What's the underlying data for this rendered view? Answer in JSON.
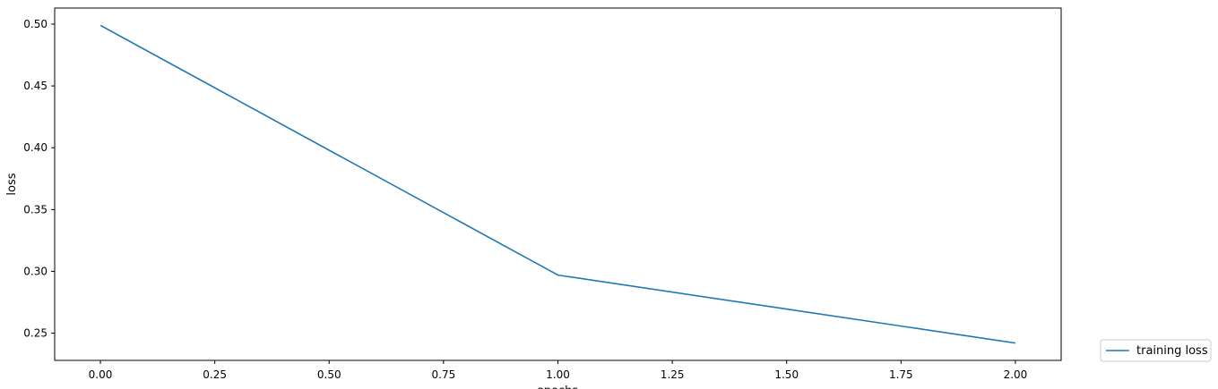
{
  "chart_data": {
    "type": "line",
    "title": "",
    "xlabel": "epochs",
    "ylabel": "loss",
    "xlim": [
      -0.1,
      2.1
    ],
    "ylim": [
      0.228,
      0.513
    ],
    "xticks": [
      0.0,
      0.25,
      0.5,
      0.75,
      1.0,
      1.25,
      1.5,
      1.75,
      2.0
    ],
    "xtick_labels": [
      "0.00",
      "0.25",
      "0.50",
      "0.75",
      "1.00",
      "1.25",
      "1.50",
      "1.75",
      "2.00"
    ],
    "yticks": [
      0.25,
      0.3,
      0.35,
      0.4,
      0.45,
      0.5
    ],
    "ytick_labels": [
      "0.25",
      "0.30",
      "0.35",
      "0.40",
      "0.45",
      "0.50"
    ],
    "grid": false,
    "legend_position": "outside-bottom-right",
    "series": [
      {
        "name": "training loss",
        "color": "#1f77b4",
        "x": [
          0,
          1,
          2
        ],
        "y": [
          0.499,
          0.297,
          0.242
        ]
      }
    ]
  }
}
